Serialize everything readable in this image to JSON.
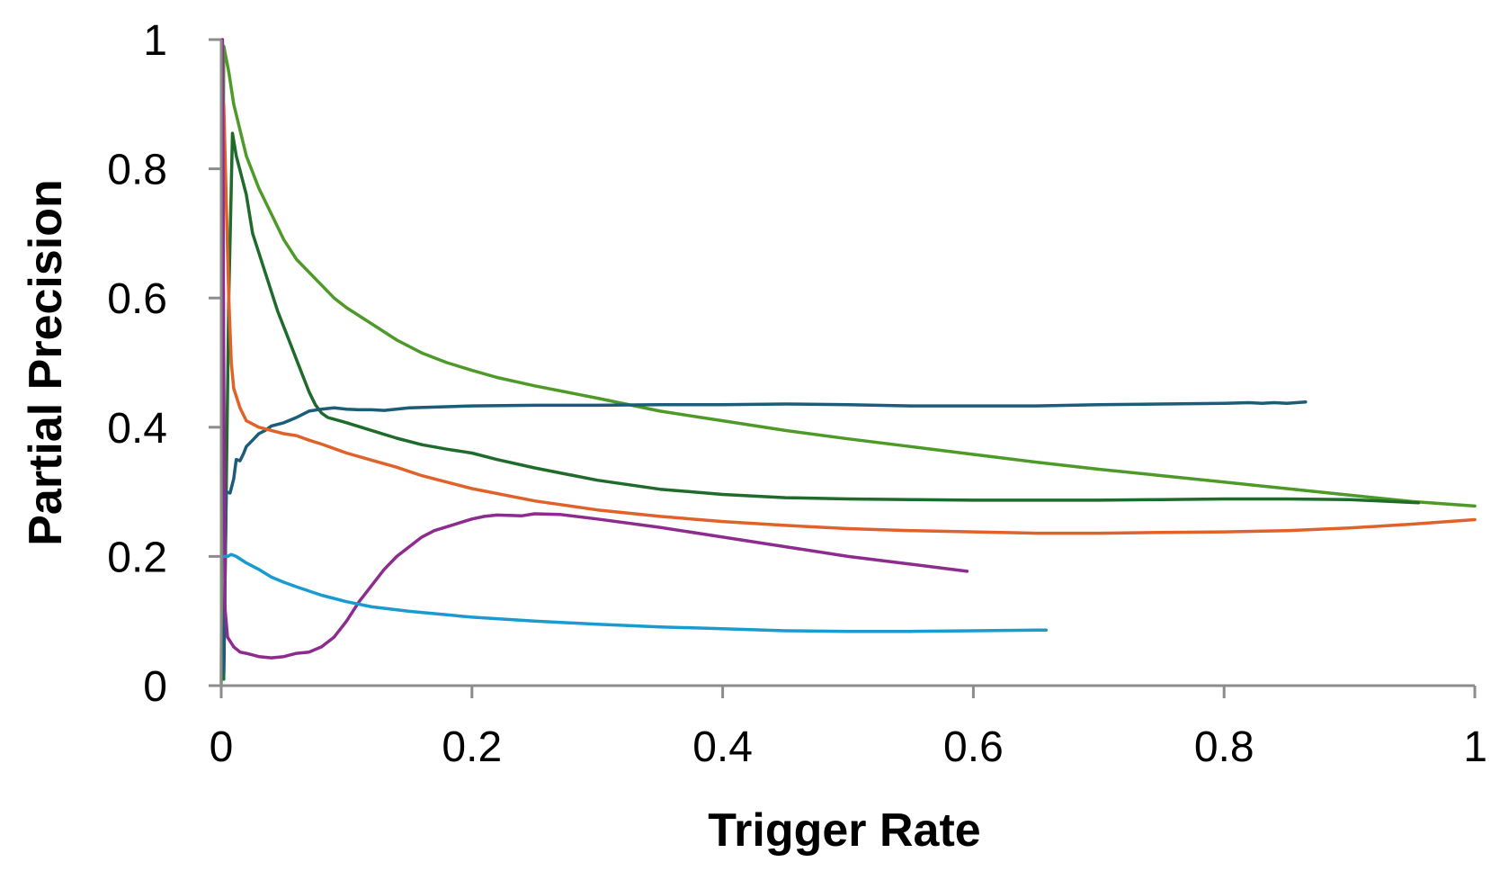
{
  "chart_data": {
    "type": "line",
    "title": "",
    "xlabel": "Trigger Rate",
    "ylabel": "Partial Precision",
    "xlim": [
      0,
      1
    ],
    "ylim": [
      0,
      1
    ],
    "grid": false,
    "legend": "none",
    "x_ticks": [
      0,
      0.2,
      0.4,
      0.6,
      0.8,
      1
    ],
    "y_ticks": [
      0,
      0.2,
      0.4,
      0.6,
      0.8,
      1
    ],
    "x_tick_labels": [
      "0",
      "0.2",
      "0.4",
      "0.6",
      "0.8",
      "1"
    ],
    "y_tick_labels": [
      "0",
      "0.2",
      "0.4",
      "0.6",
      "0.8",
      "1"
    ],
    "series": [
      {
        "name": "light-green",
        "color": "#4e9a28",
        "points": [
          [
            0,
            0
          ],
          [
            0.002,
            0.99
          ],
          [
            0.006,
            0.95
          ],
          [
            0.01,
            0.9
          ],
          [
            0.015,
            0.86
          ],
          [
            0.02,
            0.82
          ],
          [
            0.03,
            0.77
          ],
          [
            0.04,
            0.73
          ],
          [
            0.05,
            0.69
          ],
          [
            0.06,
            0.66
          ],
          [
            0.07,
            0.64
          ],
          [
            0.08,
            0.62
          ],
          [
            0.09,
            0.6
          ],
          [
            0.1,
            0.585
          ],
          [
            0.12,
            0.56
          ],
          [
            0.14,
            0.535
          ],
          [
            0.16,
            0.515
          ],
          [
            0.18,
            0.5
          ],
          [
            0.2,
            0.488
          ],
          [
            0.22,
            0.477
          ],
          [
            0.25,
            0.464
          ],
          [
            0.3,
            0.445
          ],
          [
            0.35,
            0.425
          ],
          [
            0.4,
            0.41
          ],
          [
            0.45,
            0.395
          ],
          [
            0.5,
            0.382
          ],
          [
            0.55,
            0.37
          ],
          [
            0.6,
            0.358
          ],
          [
            0.65,
            0.346
          ],
          [
            0.7,
            0.335
          ],
          [
            0.75,
            0.325
          ],
          [
            0.8,
            0.315
          ],
          [
            0.85,
            0.305
          ],
          [
            0.9,
            0.295
          ],
          [
            0.95,
            0.285
          ],
          [
            1.0,
            0.278
          ]
        ]
      },
      {
        "name": "dark-green",
        "color": "#1e6b2c",
        "points": [
          [
            0.002,
            0.01
          ],
          [
            0.006,
            0.6
          ],
          [
            0.009,
            0.855
          ],
          [
            0.012,
            0.82
          ],
          [
            0.02,
            0.76
          ],
          [
            0.025,
            0.7
          ],
          [
            0.035,
            0.64
          ],
          [
            0.045,
            0.58
          ],
          [
            0.055,
            0.53
          ],
          [
            0.06,
            0.505
          ],
          [
            0.065,
            0.48
          ],
          [
            0.07,
            0.455
          ],
          [
            0.075,
            0.435
          ],
          [
            0.08,
            0.422
          ],
          [
            0.085,
            0.415
          ],
          [
            0.1,
            0.407
          ],
          [
            0.12,
            0.395
          ],
          [
            0.14,
            0.383
          ],
          [
            0.16,
            0.373
          ],
          [
            0.18,
            0.366
          ],
          [
            0.2,
            0.36
          ],
          [
            0.22,
            0.35
          ],
          [
            0.25,
            0.337
          ],
          [
            0.3,
            0.318
          ],
          [
            0.35,
            0.304
          ],
          [
            0.4,
            0.296
          ],
          [
            0.45,
            0.291
          ],
          [
            0.5,
            0.289
          ],
          [
            0.55,
            0.288
          ],
          [
            0.6,
            0.287
          ],
          [
            0.65,
            0.287
          ],
          [
            0.7,
            0.287
          ],
          [
            0.75,
            0.288
          ],
          [
            0.8,
            0.289
          ],
          [
            0.85,
            0.289
          ],
          [
            0.9,
            0.288
          ],
          [
            0.955,
            0.283
          ]
        ]
      },
      {
        "name": "teal",
        "color": "#1a5c7a",
        "points": [
          [
            0.002,
            0.02
          ],
          [
            0.004,
            0.3
          ],
          [
            0.007,
            0.298
          ],
          [
            0.01,
            0.32
          ],
          [
            0.012,
            0.35
          ],
          [
            0.015,
            0.348
          ],
          [
            0.018,
            0.36
          ],
          [
            0.02,
            0.37
          ],
          [
            0.025,
            0.38
          ],
          [
            0.03,
            0.39
          ],
          [
            0.035,
            0.395
          ],
          [
            0.04,
            0.402
          ],
          [
            0.05,
            0.407
          ],
          [
            0.06,
            0.415
          ],
          [
            0.07,
            0.425
          ],
          [
            0.08,
            0.428
          ],
          [
            0.09,
            0.43
          ],
          [
            0.1,
            0.428
          ],
          [
            0.11,
            0.427
          ],
          [
            0.12,
            0.427
          ],
          [
            0.13,
            0.426
          ],
          [
            0.15,
            0.43
          ],
          [
            0.2,
            0.433
          ],
          [
            0.25,
            0.434
          ],
          [
            0.3,
            0.434
          ],
          [
            0.35,
            0.435
          ],
          [
            0.4,
            0.435
          ],
          [
            0.45,
            0.436
          ],
          [
            0.5,
            0.435
          ],
          [
            0.55,
            0.433
          ],
          [
            0.6,
            0.433
          ],
          [
            0.65,
            0.433
          ],
          [
            0.7,
            0.435
          ],
          [
            0.75,
            0.436
          ],
          [
            0.8,
            0.437
          ],
          [
            0.82,
            0.438
          ],
          [
            0.83,
            0.437
          ],
          [
            0.84,
            0.438
          ],
          [
            0.85,
            0.437
          ],
          [
            0.865,
            0.439
          ]
        ]
      },
      {
        "name": "orange",
        "color": "#e0622a",
        "points": [
          [
            0.002,
            0.9
          ],
          [
            0.004,
            0.75
          ],
          [
            0.006,
            0.6
          ],
          [
            0.008,
            0.5
          ],
          [
            0.01,
            0.46
          ],
          [
            0.015,
            0.43
          ],
          [
            0.02,
            0.41
          ],
          [
            0.03,
            0.4
          ],
          [
            0.04,
            0.395
          ],
          [
            0.05,
            0.39
          ],
          [
            0.06,
            0.387
          ],
          [
            0.07,
            0.38
          ],
          [
            0.08,
            0.374
          ],
          [
            0.1,
            0.36
          ],
          [
            0.12,
            0.349
          ],
          [
            0.14,
            0.338
          ],
          [
            0.16,
            0.325
          ],
          [
            0.18,
            0.315
          ],
          [
            0.2,
            0.305
          ],
          [
            0.25,
            0.286
          ],
          [
            0.3,
            0.272
          ],
          [
            0.35,
            0.262
          ],
          [
            0.4,
            0.254
          ],
          [
            0.45,
            0.248
          ],
          [
            0.5,
            0.243
          ],
          [
            0.55,
            0.24
          ],
          [
            0.6,
            0.238
          ],
          [
            0.65,
            0.236
          ],
          [
            0.7,
            0.236
          ],
          [
            0.75,
            0.237
          ],
          [
            0.8,
            0.238
          ],
          [
            0.85,
            0.24
          ],
          [
            0.9,
            0.244
          ],
          [
            0.95,
            0.25
          ],
          [
            1.0,
            0.257
          ]
        ]
      },
      {
        "name": "purple",
        "color": "#8e2b8e",
        "points": [
          [
            0.001,
            1.0
          ],
          [
            0.002,
            0.5
          ],
          [
            0.003,
            0.12
          ],
          [
            0.005,
            0.075
          ],
          [
            0.01,
            0.06
          ],
          [
            0.015,
            0.052
          ],
          [
            0.02,
            0.05
          ],
          [
            0.03,
            0.045
          ],
          [
            0.04,
            0.043
          ],
          [
            0.05,
            0.045
          ],
          [
            0.06,
            0.05
          ],
          [
            0.07,
            0.052
          ],
          [
            0.08,
            0.06
          ],
          [
            0.09,
            0.075
          ],
          [
            0.1,
            0.1
          ],
          [
            0.11,
            0.13
          ],
          [
            0.12,
            0.155
          ],
          [
            0.13,
            0.18
          ],
          [
            0.14,
            0.2
          ],
          [
            0.15,
            0.215
          ],
          [
            0.16,
            0.23
          ],
          [
            0.17,
            0.24
          ],
          [
            0.18,
            0.246
          ],
          [
            0.19,
            0.252
          ],
          [
            0.2,
            0.258
          ],
          [
            0.21,
            0.262
          ],
          [
            0.22,
            0.264
          ],
          [
            0.24,
            0.263
          ],
          [
            0.25,
            0.266
          ],
          [
            0.27,
            0.265
          ],
          [
            0.3,
            0.258
          ],
          [
            0.35,
            0.245
          ],
          [
            0.4,
            0.23
          ],
          [
            0.45,
            0.215
          ],
          [
            0.5,
            0.2
          ],
          [
            0.55,
            0.188
          ],
          [
            0.595,
            0.177
          ]
        ]
      },
      {
        "name": "light-blue",
        "color": "#1a9bd0",
        "points": [
          [
            0.002,
            0.2
          ],
          [
            0.005,
            0.2
          ],
          [
            0.008,
            0.203
          ],
          [
            0.012,
            0.2
          ],
          [
            0.02,
            0.19
          ],
          [
            0.03,
            0.18
          ],
          [
            0.04,
            0.168
          ],
          [
            0.05,
            0.16
          ],
          [
            0.06,
            0.153
          ],
          [
            0.08,
            0.14
          ],
          [
            0.1,
            0.13
          ],
          [
            0.12,
            0.122
          ],
          [
            0.15,
            0.115
          ],
          [
            0.2,
            0.106
          ],
          [
            0.25,
            0.1
          ],
          [
            0.3,
            0.095
          ],
          [
            0.35,
            0.091
          ],
          [
            0.4,
            0.088
          ],
          [
            0.45,
            0.085
          ],
          [
            0.5,
            0.084
          ],
          [
            0.55,
            0.084
          ],
          [
            0.6,
            0.085
          ],
          [
            0.65,
            0.086
          ],
          [
            0.658,
            0.086
          ]
        ]
      }
    ]
  }
}
